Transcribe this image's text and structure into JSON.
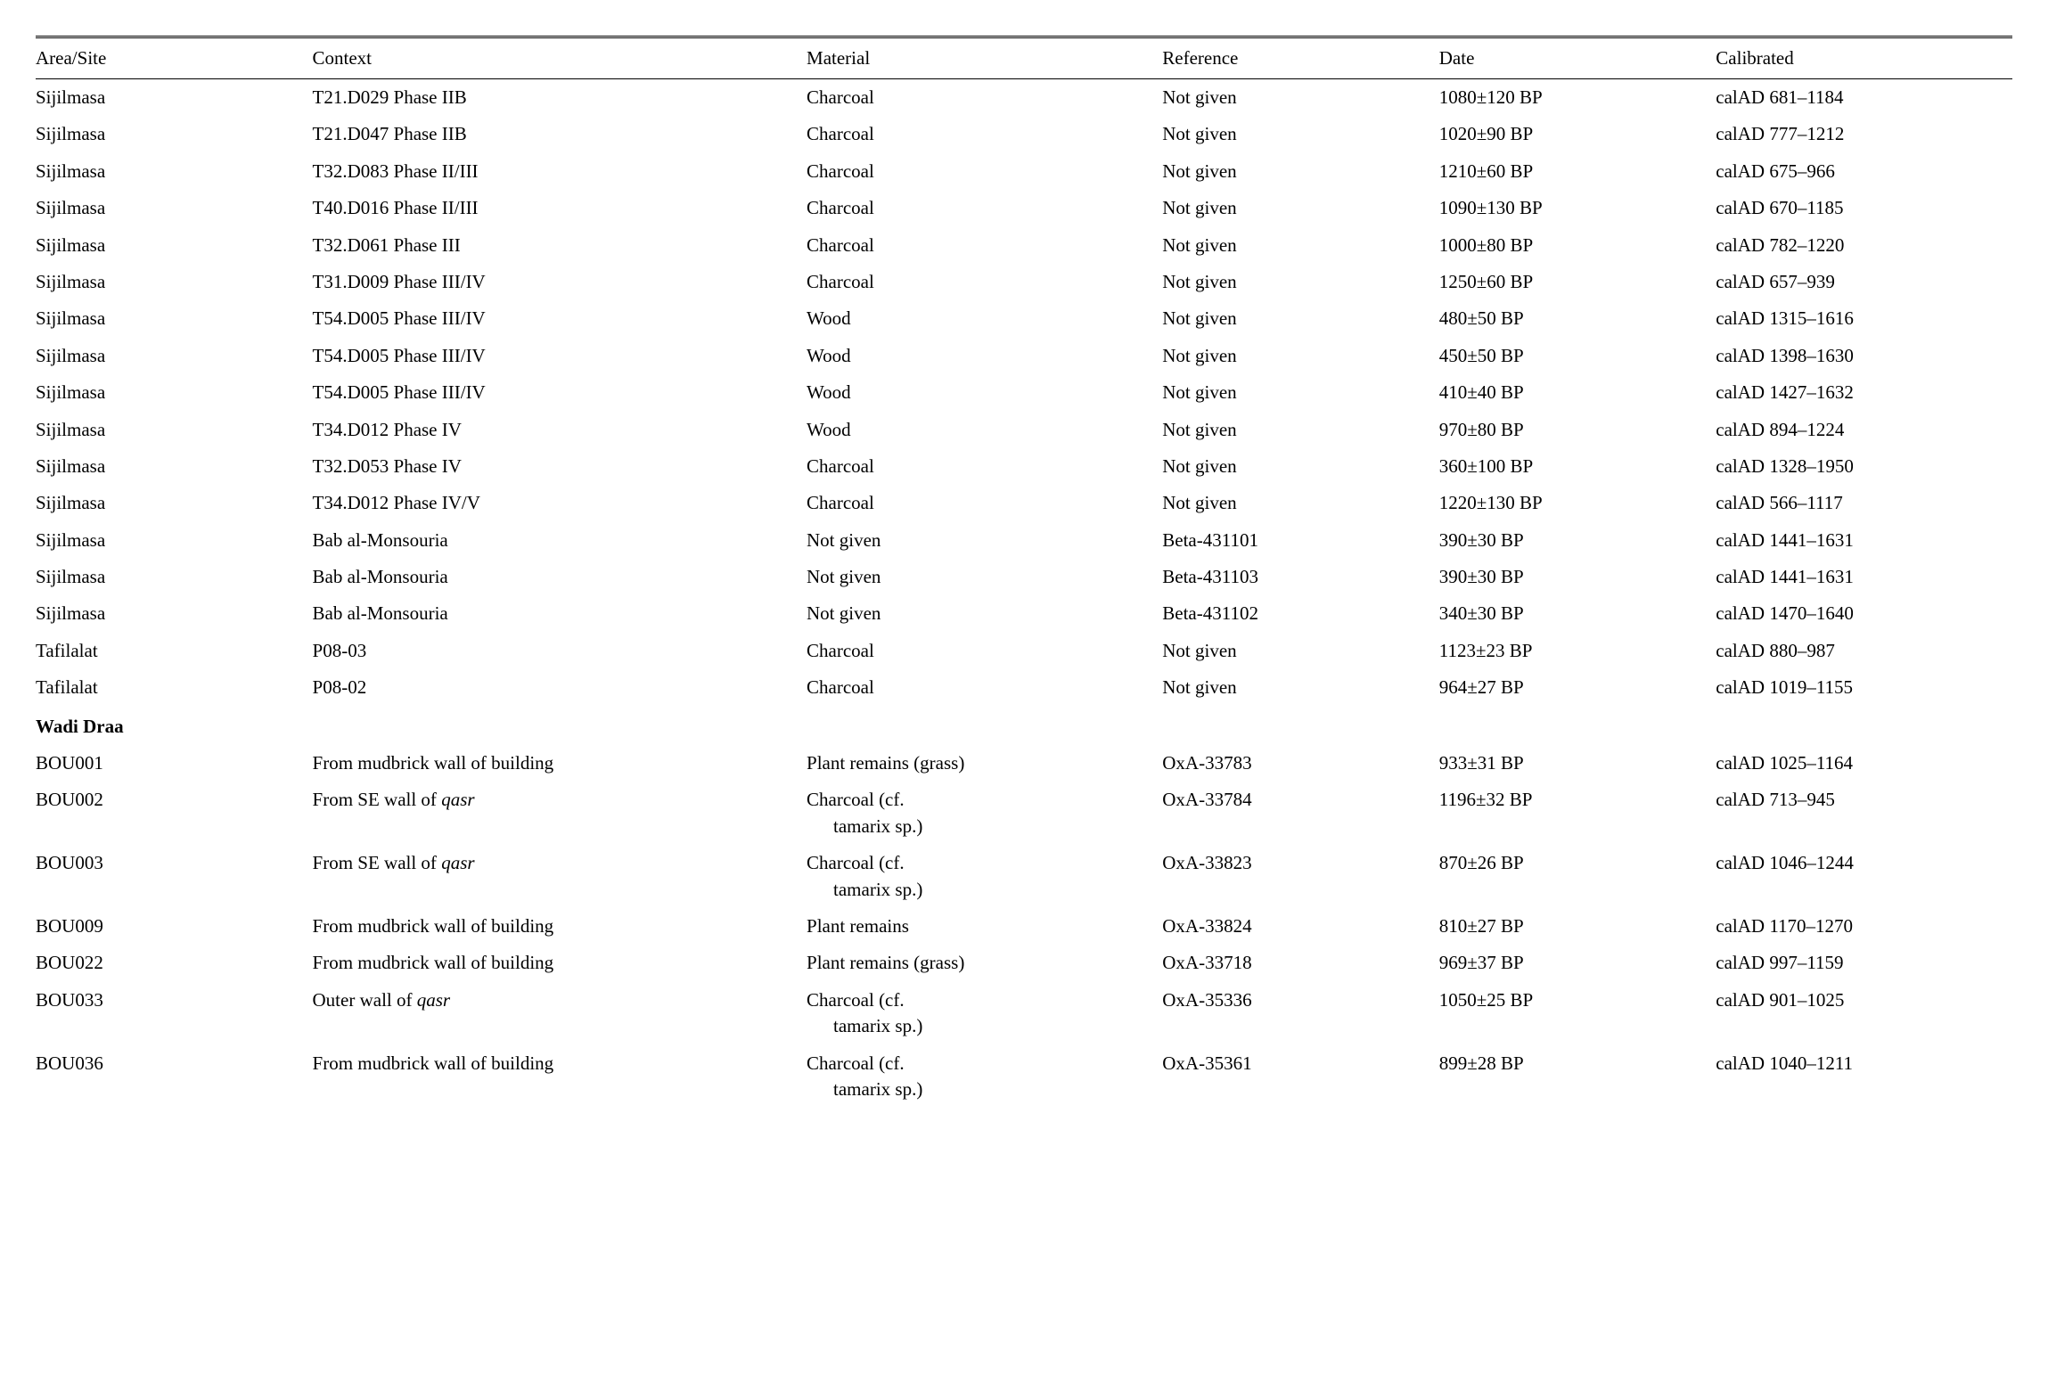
{
  "columns": {
    "area": "Area/Site",
    "context": "Context",
    "material": "Material",
    "reference": "Reference",
    "date": "Date",
    "calibrated": "Calibrated"
  },
  "rows": [
    {
      "area": "Sijilmasa",
      "context": "T21.D029 Phase IIB",
      "material": "Charcoal",
      "reference": "Not given",
      "date": "1080±120 BP",
      "calibrated": "calAD 681–1184"
    },
    {
      "area": "Sijilmasa",
      "context": "T21.D047 Phase IIB",
      "material": "Charcoal",
      "reference": "Not given",
      "date": "1020±90 BP",
      "calibrated": "calAD 777–1212"
    },
    {
      "area": "Sijilmasa",
      "context": "T32.D083 Phase II/III",
      "material": "Charcoal",
      "reference": "Not given",
      "date": "1210±60 BP",
      "calibrated": "calAD 675–966"
    },
    {
      "area": "Sijilmasa",
      "context": "T40.D016 Phase II/III",
      "material": "Charcoal",
      "reference": "Not given",
      "date": "1090±130 BP",
      "calibrated": "calAD 670–1185"
    },
    {
      "area": "Sijilmasa",
      "context": "T32.D061 Phase III",
      "material": "Charcoal",
      "reference": "Not given",
      "date": "1000±80 BP",
      "calibrated": "calAD 782–1220"
    },
    {
      "area": "Sijilmasa",
      "context": "T31.D009 Phase III/IV",
      "material": "Charcoal",
      "reference": "Not given",
      "date": "1250±60 BP",
      "calibrated": "calAD 657–939"
    },
    {
      "area": "Sijilmasa",
      "context": "T54.D005 Phase III/IV",
      "material": "Wood",
      "reference": "Not given",
      "date": "480±50 BP",
      "calibrated": "calAD 1315–1616"
    },
    {
      "area": "Sijilmasa",
      "context": "T54.D005 Phase III/IV",
      "material": "Wood",
      "reference": "Not given",
      "date": "450±50 BP",
      "calibrated": "calAD 1398–1630"
    },
    {
      "area": "Sijilmasa",
      "context": "T54.D005 Phase III/IV",
      "material": "Wood",
      "reference": "Not given",
      "date": "410±40 BP",
      "calibrated": "calAD 1427–1632"
    },
    {
      "area": "Sijilmasa",
      "context": "T34.D012 Phase IV",
      "material": "Wood",
      "reference": "Not given",
      "date": "970±80 BP",
      "calibrated": "calAD 894–1224"
    },
    {
      "area": "Sijilmasa",
      "context": "T32.D053 Phase IV",
      "material": "Charcoal",
      "reference": "Not given",
      "date": "360±100 BP",
      "calibrated": "calAD 1328–1950"
    },
    {
      "area": "Sijilmasa",
      "context": "T34.D012 Phase IV/V",
      "material": "Charcoal",
      "reference": "Not given",
      "date": "1220±130 BP",
      "calibrated": "calAD 566–1117"
    },
    {
      "area": "Sijilmasa",
      "context": "Bab al-Monsouria",
      "material": "Not given",
      "reference": "Beta-431101",
      "date": "390±30 BP",
      "calibrated": "calAD 1441–1631"
    },
    {
      "area": "Sijilmasa",
      "context": "Bab al-Monsouria",
      "material": "Not given",
      "reference": "Beta-431103",
      "date": "390±30 BP",
      "calibrated": "calAD 1441–1631"
    },
    {
      "area": "Sijilmasa",
      "context": "Bab al-Monsouria",
      "material": "Not given",
      "reference": "Beta-431102",
      "date": "340±30 BP",
      "calibrated": "calAD 1470–1640"
    },
    {
      "area": "Tafilalat",
      "context": "P08-03",
      "material": "Charcoal",
      "reference": "Not given",
      "date": "1123±23 BP",
      "calibrated": "calAD 880–987"
    },
    {
      "area": "Tafilalat",
      "context": "P08-02",
      "material": "Charcoal",
      "reference": "Not given",
      "date": "964±27 BP",
      "calibrated": "calAD 1019–1155"
    }
  ],
  "section": "Wadi Draa",
  "section_rows": [
    {
      "area": "BOU001",
      "context": "From mudbrick wall of building",
      "material_line1": "Plant remains (grass)",
      "material_line2": "",
      "reference": "OxA-33783",
      "date": "933±31 BP",
      "calibrated": "calAD 1025–1164"
    },
    {
      "area": "BOU002",
      "context_prefix": "From SE wall of ",
      "context_italic": "qasr",
      "material_line1": "Charcoal (cf.",
      "material_line2": "tamarix sp.)",
      "reference": "OxA-33784",
      "date": "1196±32 BP",
      "calibrated": "calAD 713–945"
    },
    {
      "area": "BOU003",
      "context_prefix": "From SE wall of ",
      "context_italic": "qasr",
      "material_line1": "Charcoal (cf.",
      "material_line2": "tamarix sp.)",
      "reference": "OxA-33823",
      "date": "870±26 BP",
      "calibrated": "calAD 1046–1244"
    },
    {
      "area": "BOU009",
      "context": "From mudbrick wall of building",
      "material_line1": "Plant remains",
      "material_line2": "",
      "reference": "OxA-33824",
      "date": "810±27 BP",
      "calibrated": "calAD 1170–1270"
    },
    {
      "area": "BOU022",
      "context": "From mudbrick wall of building",
      "material_line1": "Plant remains (grass)",
      "material_line2": "",
      "reference": "OxA-33718",
      "date": "969±37 BP",
      "calibrated": "calAD 997–1159"
    },
    {
      "area": "BOU033",
      "context_prefix": "Outer wall of ",
      "context_italic": "qasr",
      "material_line1": "Charcoal (cf.",
      "material_line2": "tamarix sp.)",
      "reference": "OxA-35336",
      "date": "1050±25 BP",
      "calibrated": "calAD 901–1025"
    },
    {
      "area": "BOU036",
      "context": "From mudbrick wall of building",
      "material_line1": "Charcoal (cf.",
      "material_line2": "tamarix sp.)",
      "reference": "OxA-35361",
      "date": "899±28 BP",
      "calibrated": "calAD 1040–1211"
    }
  ]
}
